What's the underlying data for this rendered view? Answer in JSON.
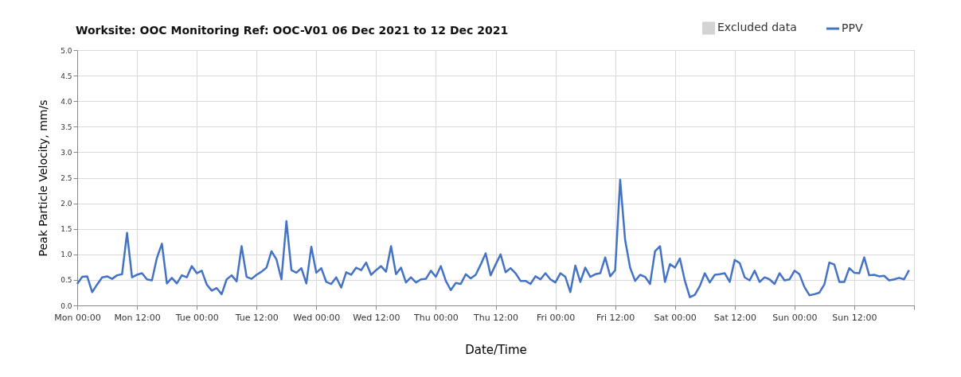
{
  "chart_data": {
    "type": "line",
    "title": "Worksite: OOC Monitoring Ref: OOC-V01 06 Dec 2021 to 12 Dec 2021",
    "xlabel": "Date/Time",
    "ylabel": "Peak Particle Velocity, mm/s",
    "x": [
      "2021-12-06T00:00",
      "2021-12-06T01:00",
      "2021-12-06T02:00",
      "2021-12-06T03:00",
      "2021-12-06T04:00",
      "2021-12-06T05:00",
      "2021-12-06T06:00",
      "2021-12-06T07:00",
      "2021-12-06T08:00",
      "2021-12-06T09:00",
      "2021-12-06T10:00",
      "2021-12-06T11:00",
      "2021-12-06T12:00",
      "2021-12-06T13:00",
      "2021-12-06T14:00",
      "2021-12-06T15:00",
      "2021-12-06T16:00",
      "2021-12-06T17:00",
      "2021-12-06T18:00",
      "2021-12-06T19:00",
      "2021-12-06T20:00",
      "2021-12-06T21:00",
      "2021-12-06T22:00",
      "2021-12-06T23:00",
      "2021-12-07T00:00",
      "2021-12-07T01:00",
      "2021-12-07T02:00",
      "2021-12-07T03:00",
      "2021-12-07T04:00",
      "2021-12-07T05:00",
      "2021-12-07T06:00",
      "2021-12-07T07:00",
      "2021-12-07T08:00",
      "2021-12-07T09:00",
      "2021-12-07T10:00",
      "2021-12-07T11:00",
      "2021-12-07T12:00",
      "2021-12-07T13:00",
      "2021-12-07T14:00",
      "2021-12-07T15:00",
      "2021-12-07T16:00",
      "2021-12-07T17:00",
      "2021-12-07T18:00",
      "2021-12-07T19:00",
      "2021-12-07T20:00",
      "2021-12-07T21:00",
      "2021-12-07T22:00",
      "2021-12-07T23:00",
      "2021-12-08T00:00",
      "2021-12-08T01:00",
      "2021-12-08T02:00",
      "2021-12-08T03:00",
      "2021-12-08T04:00",
      "2021-12-08T05:00",
      "2021-12-08T06:00",
      "2021-12-08T07:00",
      "2021-12-08T08:00",
      "2021-12-08T09:00",
      "2021-12-08T10:00",
      "2021-12-08T11:00",
      "2021-12-08T12:00",
      "2021-12-08T13:00",
      "2021-12-08T14:00",
      "2021-12-08T15:00",
      "2021-12-08T16:00",
      "2021-12-08T17:00",
      "2021-12-08T18:00",
      "2021-12-08T19:00",
      "2021-12-08T20:00",
      "2021-12-08T21:00",
      "2021-12-08T22:00",
      "2021-12-08T23:00",
      "2021-12-09T00:00",
      "2021-12-09T01:00",
      "2021-12-09T02:00",
      "2021-12-09T03:00",
      "2021-12-09T04:00",
      "2021-12-09T05:00",
      "2021-12-09T06:00",
      "2021-12-09T07:00",
      "2021-12-09T08:00",
      "2021-12-09T09:00",
      "2021-12-09T10:00",
      "2021-12-09T11:00",
      "2021-12-09T12:00",
      "2021-12-09T13:00",
      "2021-12-09T14:00",
      "2021-12-09T15:00",
      "2021-12-09T16:00",
      "2021-12-09T17:00",
      "2021-12-09T18:00",
      "2021-12-09T19:00",
      "2021-12-09T20:00",
      "2021-12-09T21:00",
      "2021-12-09T22:00",
      "2021-12-09T23:00",
      "2021-12-10T00:00",
      "2021-12-10T01:00",
      "2021-12-10T02:00",
      "2021-12-10T03:00",
      "2021-12-10T04:00",
      "2021-12-10T05:00",
      "2021-12-10T06:00",
      "2021-12-10T07:00",
      "2021-12-10T08:00",
      "2021-12-10T09:00",
      "2021-12-10T10:00",
      "2021-12-10T11:00",
      "2021-12-10T12:00",
      "2021-12-10T13:00",
      "2021-12-10T14:00",
      "2021-12-10T15:00",
      "2021-12-10T16:00",
      "2021-12-10T17:00",
      "2021-12-10T18:00",
      "2021-12-10T19:00",
      "2021-12-10T20:00",
      "2021-12-10T21:00",
      "2021-12-10T22:00",
      "2021-12-10T23:00",
      "2021-12-11T00:00",
      "2021-12-11T01:00",
      "2021-12-11T02:00",
      "2021-12-11T03:00",
      "2021-12-11T04:00",
      "2021-12-11T05:00",
      "2021-12-11T06:00",
      "2021-12-11T07:00",
      "2021-12-11T08:00",
      "2021-12-11T09:00",
      "2021-12-11T10:00",
      "2021-12-11T11:00",
      "2021-12-11T12:00",
      "2021-12-11T13:00",
      "2021-12-11T14:00",
      "2021-12-11T15:00",
      "2021-12-11T16:00",
      "2021-12-11T17:00",
      "2021-12-11T18:00",
      "2021-12-11T19:00",
      "2021-12-11T20:00",
      "2021-12-11T21:00",
      "2021-12-11T22:00",
      "2021-12-11T23:00",
      "2021-12-12T00:00",
      "2021-12-12T01:00",
      "2021-12-12T02:00",
      "2021-12-12T03:00",
      "2021-12-12T04:00",
      "2021-12-12T05:00",
      "2021-12-12T06:00",
      "2021-12-12T07:00",
      "2021-12-12T08:00",
      "2021-12-12T09:00",
      "2021-12-12T10:00",
      "2021-12-12T11:00",
      "2021-12-12T12:00",
      "2021-12-12T13:00",
      "2021-12-12T14:00",
      "2021-12-12T15:00",
      "2021-12-12T16:00",
      "2021-12-12T17:00",
      "2021-12-12T18:00",
      "2021-12-12T19:00",
      "2021-12-12T20:00",
      "2021-12-12T21:00",
      "2021-12-12T22:00",
      "2021-12-12T23:00"
    ],
    "series": [
      {
        "name": "Excluded data",
        "type": "area",
        "color": "#d3d3d3",
        "values": [
          null,
          null,
          null,
          null,
          null,
          null,
          null,
          null,
          null,
          null,
          null,
          null,
          null,
          null,
          null,
          null,
          null,
          null,
          null,
          null,
          null,
          null,
          null,
          null,
          null,
          null,
          null,
          null,
          null,
          null,
          null,
          null,
          null,
          null,
          null,
          null,
          null,
          null,
          null,
          null,
          null,
          null,
          null,
          null,
          null,
          null,
          null,
          null,
          null,
          null,
          null,
          null,
          null,
          null,
          null,
          null,
          null,
          null,
          null,
          null,
          null,
          null,
          null,
          null,
          null,
          null,
          null,
          null,
          null,
          null,
          null,
          null,
          null,
          null,
          null,
          null,
          null,
          null,
          null,
          null,
          null,
          null,
          null,
          null,
          null,
          null,
          null,
          null,
          null,
          null,
          null,
          null,
          null,
          null,
          null,
          null,
          null,
          null,
          null,
          null,
          null,
          null,
          null,
          null,
          null,
          null,
          null,
          null,
          null,
          null,
          null,
          null,
          null,
          null,
          null,
          null,
          null,
          null,
          null,
          null,
          null,
          null,
          null,
          null,
          null,
          null,
          null,
          null,
          null,
          null,
          null,
          null,
          null,
          null,
          null,
          null,
          null,
          null,
          null,
          null,
          null,
          null,
          null,
          null,
          null,
          null,
          null,
          null,
          null,
          null,
          null,
          null,
          null,
          null,
          null,
          null,
          null,
          null,
          null,
          null,
          null,
          null,
          null,
          null,
          null,
          null,
          null,
          null
        ]
      },
      {
        "name": "PPV",
        "color": "#4472c4",
        "values": [
          0.42,
          0.56,
          0.57,
          0.26,
          0.41,
          0.55,
          0.57,
          0.52,
          0.59,
          0.61,
          1.42,
          0.55,
          0.6,
          0.63,
          0.51,
          0.49,
          0.93,
          1.21,
          0.43,
          0.54,
          0.43,
          0.59,
          0.55,
          0.77,
          0.63,
          0.68,
          0.41,
          0.29,
          0.34,
          0.22,
          0.51,
          0.59,
          0.47,
          1.16,
          0.56,
          0.52,
          0.6,
          0.66,
          0.74,
          1.06,
          0.9,
          0.51,
          1.65,
          0.69,
          0.64,
          0.73,
          0.43,
          1.15,
          0.64,
          0.73,
          0.46,
          0.42,
          0.55,
          0.35,
          0.65,
          0.6,
          0.74,
          0.69,
          0.84,
          0.6,
          0.69,
          0.77,
          0.66,
          1.16,
          0.61,
          0.74,
          0.45,
          0.55,
          0.45,
          0.51,
          0.52,
          0.68,
          0.56,
          0.77,
          0.48,
          0.3,
          0.44,
          0.42,
          0.61,
          0.53,
          0.6,
          0.8,
          1.02,
          0.59,
          0.8,
          1.0,
          0.65,
          0.73,
          0.63,
          0.48,
          0.48,
          0.42,
          0.57,
          0.51,
          0.63,
          0.51,
          0.45,
          0.63,
          0.56,
          0.26,
          0.78,
          0.46,
          0.74,
          0.56,
          0.61,
          0.63,
          0.94,
          0.57,
          0.69,
          2.46,
          1.28,
          0.74,
          0.48,
          0.6,
          0.56,
          0.42,
          1.06,
          1.16,
          0.46,
          0.81,
          0.74,
          0.92,
          0.48,
          0.16,
          0.21,
          0.38,
          0.63,
          0.45,
          0.6,
          0.61,
          0.63,
          0.46,
          0.89,
          0.83,
          0.55,
          0.49,
          0.68,
          0.46,
          0.55,
          0.51,
          0.42,
          0.63,
          0.49,
          0.51,
          0.68,
          0.61,
          0.36,
          0.2,
          0.22,
          0.25,
          0.41,
          0.84,
          0.8,
          0.46,
          0.46,
          0.73,
          0.64,
          0.63,
          0.94,
          0.59,
          0.6,
          0.57,
          0.58,
          0.49,
          0.51,
          0.54,
          0.51,
          0.69
        ]
      }
    ],
    "xlim": [
      "2021-12-06T00:00",
      "2021-12-13T00:00"
    ],
    "xticks": [
      {
        "value": "2021-12-06T00:00",
        "label": "Mon 00:00"
      },
      {
        "value": "2021-12-06T12:00",
        "label": "Mon 12:00"
      },
      {
        "value": "2021-12-07T00:00",
        "label": "Tue 00:00"
      },
      {
        "value": "2021-12-07T12:00",
        "label": "Tue 12:00"
      },
      {
        "value": "2021-12-08T00:00",
        "label": "Wed 00:00"
      },
      {
        "value": "2021-12-08T12:00",
        "label": "Wed 12:00"
      },
      {
        "value": "2021-12-09T00:00",
        "label": "Thu 00:00"
      },
      {
        "value": "2021-12-09T12:00",
        "label": "Thu 12:00"
      },
      {
        "value": "2021-12-10T00:00",
        "label": "Fri 00:00"
      },
      {
        "value": "2021-12-10T12:00",
        "label": "Fri 12:00"
      },
      {
        "value": "2021-12-11T00:00",
        "label": "Sat 00:00"
      },
      {
        "value": "2021-12-11T12:00",
        "label": "Sat 12:00"
      },
      {
        "value": "2021-12-12T00:00",
        "label": "Sun 00:00"
      },
      {
        "value": "2021-12-12T12:00",
        "label": "Sun 12:00"
      },
      {
        "value": "2021-12-13T00:00",
        "label": null
      }
    ],
    "ylim": [
      0,
      5
    ],
    "yticks": [
      {
        "value": 0,
        "label": "0.0"
      },
      {
        "value": 0.5,
        "label": "0.5"
      },
      {
        "value": 1,
        "label": "1.0"
      },
      {
        "value": 1.5,
        "label": "1.5"
      },
      {
        "value": 2,
        "label": "2.0"
      },
      {
        "value": 2.5,
        "label": "2.5"
      },
      {
        "value": 3,
        "label": "3.0"
      },
      {
        "value": 3.5,
        "label": "3.5"
      },
      {
        "value": 4,
        "label": "4.0"
      },
      {
        "value": 4.5,
        "label": "4.5"
      },
      {
        "value": 5,
        "label": "5.0"
      }
    ],
    "grid": true,
    "legend": "top right",
    "marker": "none",
    "line_style": "solid"
  }
}
